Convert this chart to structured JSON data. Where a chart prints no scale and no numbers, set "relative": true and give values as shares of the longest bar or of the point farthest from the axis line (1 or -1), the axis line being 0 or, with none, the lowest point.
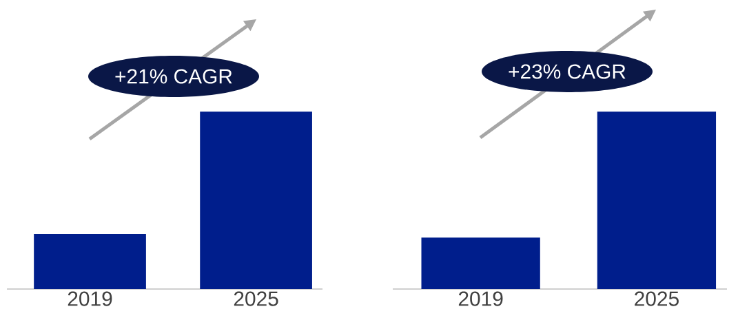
{
  "chart_data": [
    {
      "type": "bar",
      "categories": [
        "2019",
        "2025"
      ],
      "values": [
        0.31,
        1
      ],
      "color": "#001e8c",
      "relative": true,
      "annotations": [
        "+21% CAGR"
      ]
    },
    {
      "type": "bar",
      "categories": [
        "2019",
        "2025"
      ],
      "values": [
        0.29,
        1
      ],
      "color": "#001e8c",
      "relative": true,
      "annotations": [
        "+23% CAGR"
      ]
    }
  ]
}
